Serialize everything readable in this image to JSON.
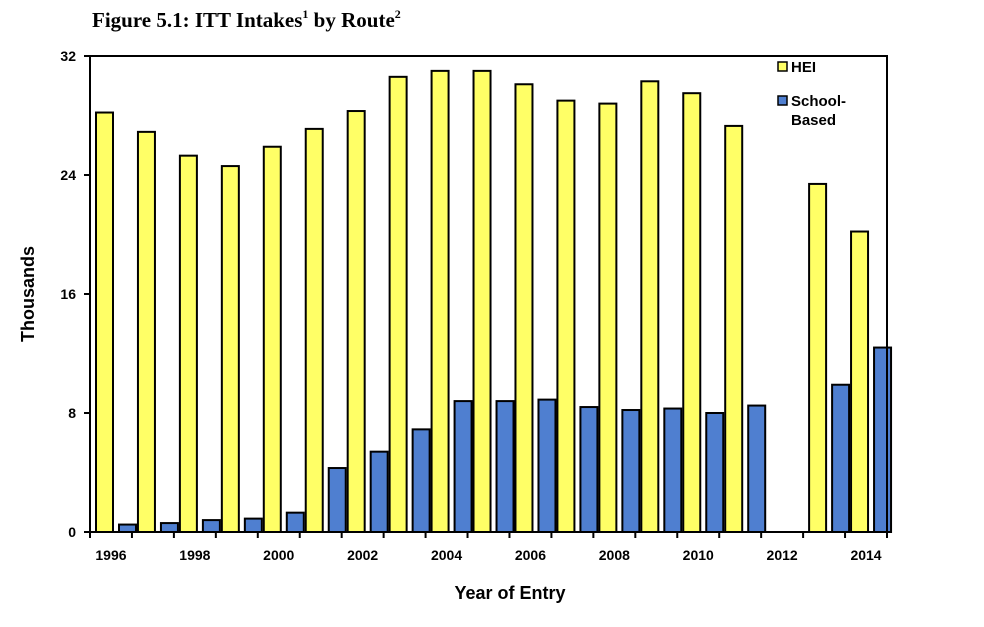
{
  "title": {
    "prefix": "Figure 5.1: ITT Intakes",
    "sup1": "1",
    "middle": " by Route",
    "sup2": "2"
  },
  "chart_data": {
    "type": "bar",
    "xlabel": "Year of Entry",
    "ylabel": "Thousands",
    "ylim": [
      0,
      32
    ],
    "yticks": [
      0,
      8,
      16,
      24,
      32
    ],
    "grid": false,
    "legend_position": "top-right",
    "categories": [
      "1996",
      "1997",
      "1998",
      "1999",
      "2000",
      "2001",
      "2002",
      "2003",
      "2004",
      "2005",
      "2006",
      "2007",
      "2008",
      "2009",
      "2010",
      "2011",
      "2012",
      "2013",
      "2014"
    ],
    "x_tick_labels": [
      "1996",
      "1998",
      "2000",
      "2002",
      "2004",
      "2006",
      "2008",
      "2010",
      "2012",
      "2014"
    ],
    "series": [
      {
        "name": "HEI",
        "color": "#FFFF66",
        "values": [
          28.2,
          26.9,
          25.3,
          24.6,
          25.9,
          27.1,
          28.3,
          30.6,
          31.0,
          31.0,
          30.1,
          29.0,
          28.8,
          30.3,
          29.5,
          27.3,
          null,
          23.4,
          20.2
        ]
      },
      {
        "name": "School-Based",
        "color": "#4F7FD0",
        "values": [
          0.5,
          0.6,
          0.8,
          0.9,
          1.3,
          4.3,
          5.4,
          6.9,
          8.8,
          8.8,
          8.9,
          8.4,
          8.2,
          8.3,
          8.0,
          8.5,
          null,
          9.9,
          12.4
        ]
      }
    ]
  }
}
